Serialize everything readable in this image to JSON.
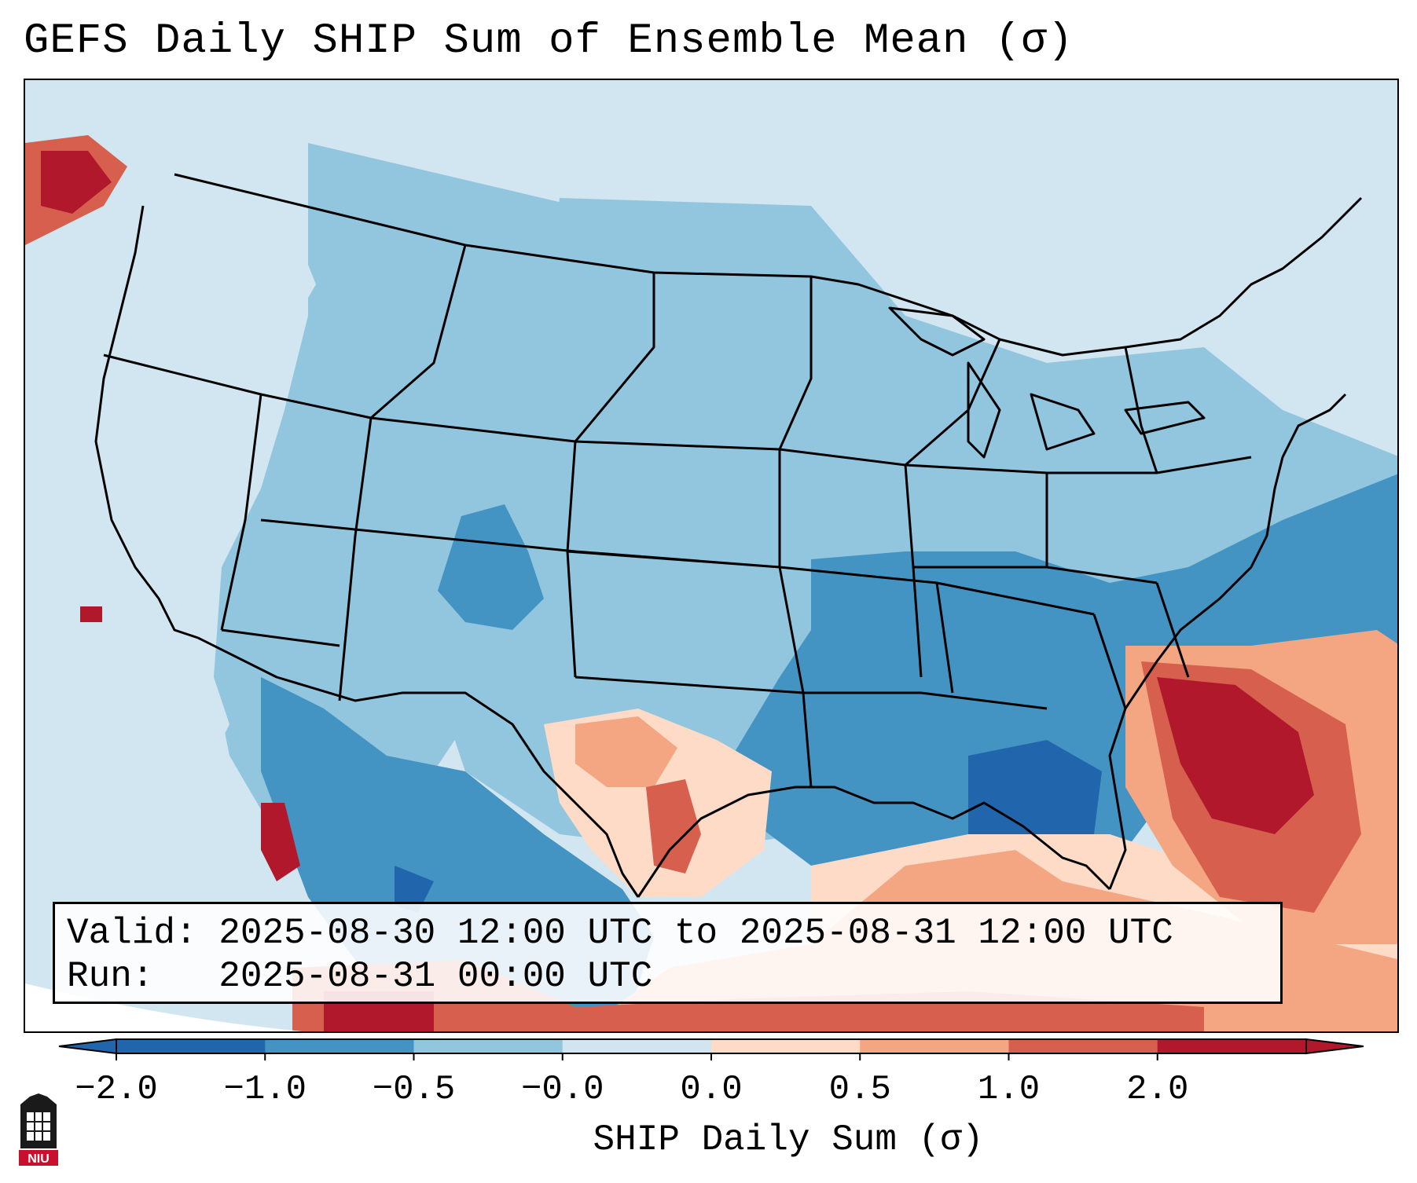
{
  "title": "GEFS Daily SHIP Sum of Ensemble Mean (σ)",
  "map": {
    "variable": "SHIP Daily Sum",
    "units": "σ",
    "region": "CONUS",
    "colors": {
      "bin_1": "#2166ac",
      "bin_2": "#4393c3",
      "bin_3": "#92c5de",
      "bin_4": "#d1e5f0",
      "bin_5": "#fddbc7",
      "bin_6": "#f4a582",
      "bin_7": "#d6604d",
      "bin_8": "#b2182b",
      "land_outline": "#000000"
    }
  },
  "info": {
    "valid_line": "Valid: 2025-08-30 12:00 UTC to 2025-08-31 12:00 UTC",
    "run_line": "Run:   2025-08-31 00:00 UTC"
  },
  "colorbar": {
    "label": "SHIP Daily Sum (σ)",
    "ticks": [
      "−2.0",
      "−1.0",
      "−0.5",
      "−0.0",
      "0.0",
      "0.5",
      "1.0",
      "2.0"
    ],
    "colors": [
      "#2166ac",
      "#4393c3",
      "#92c5de",
      "#d1e5f0",
      "#fddbc7",
      "#f4a582",
      "#d6604d",
      "#b2182b"
    ]
  },
  "logo": {
    "text": "NIU"
  }
}
